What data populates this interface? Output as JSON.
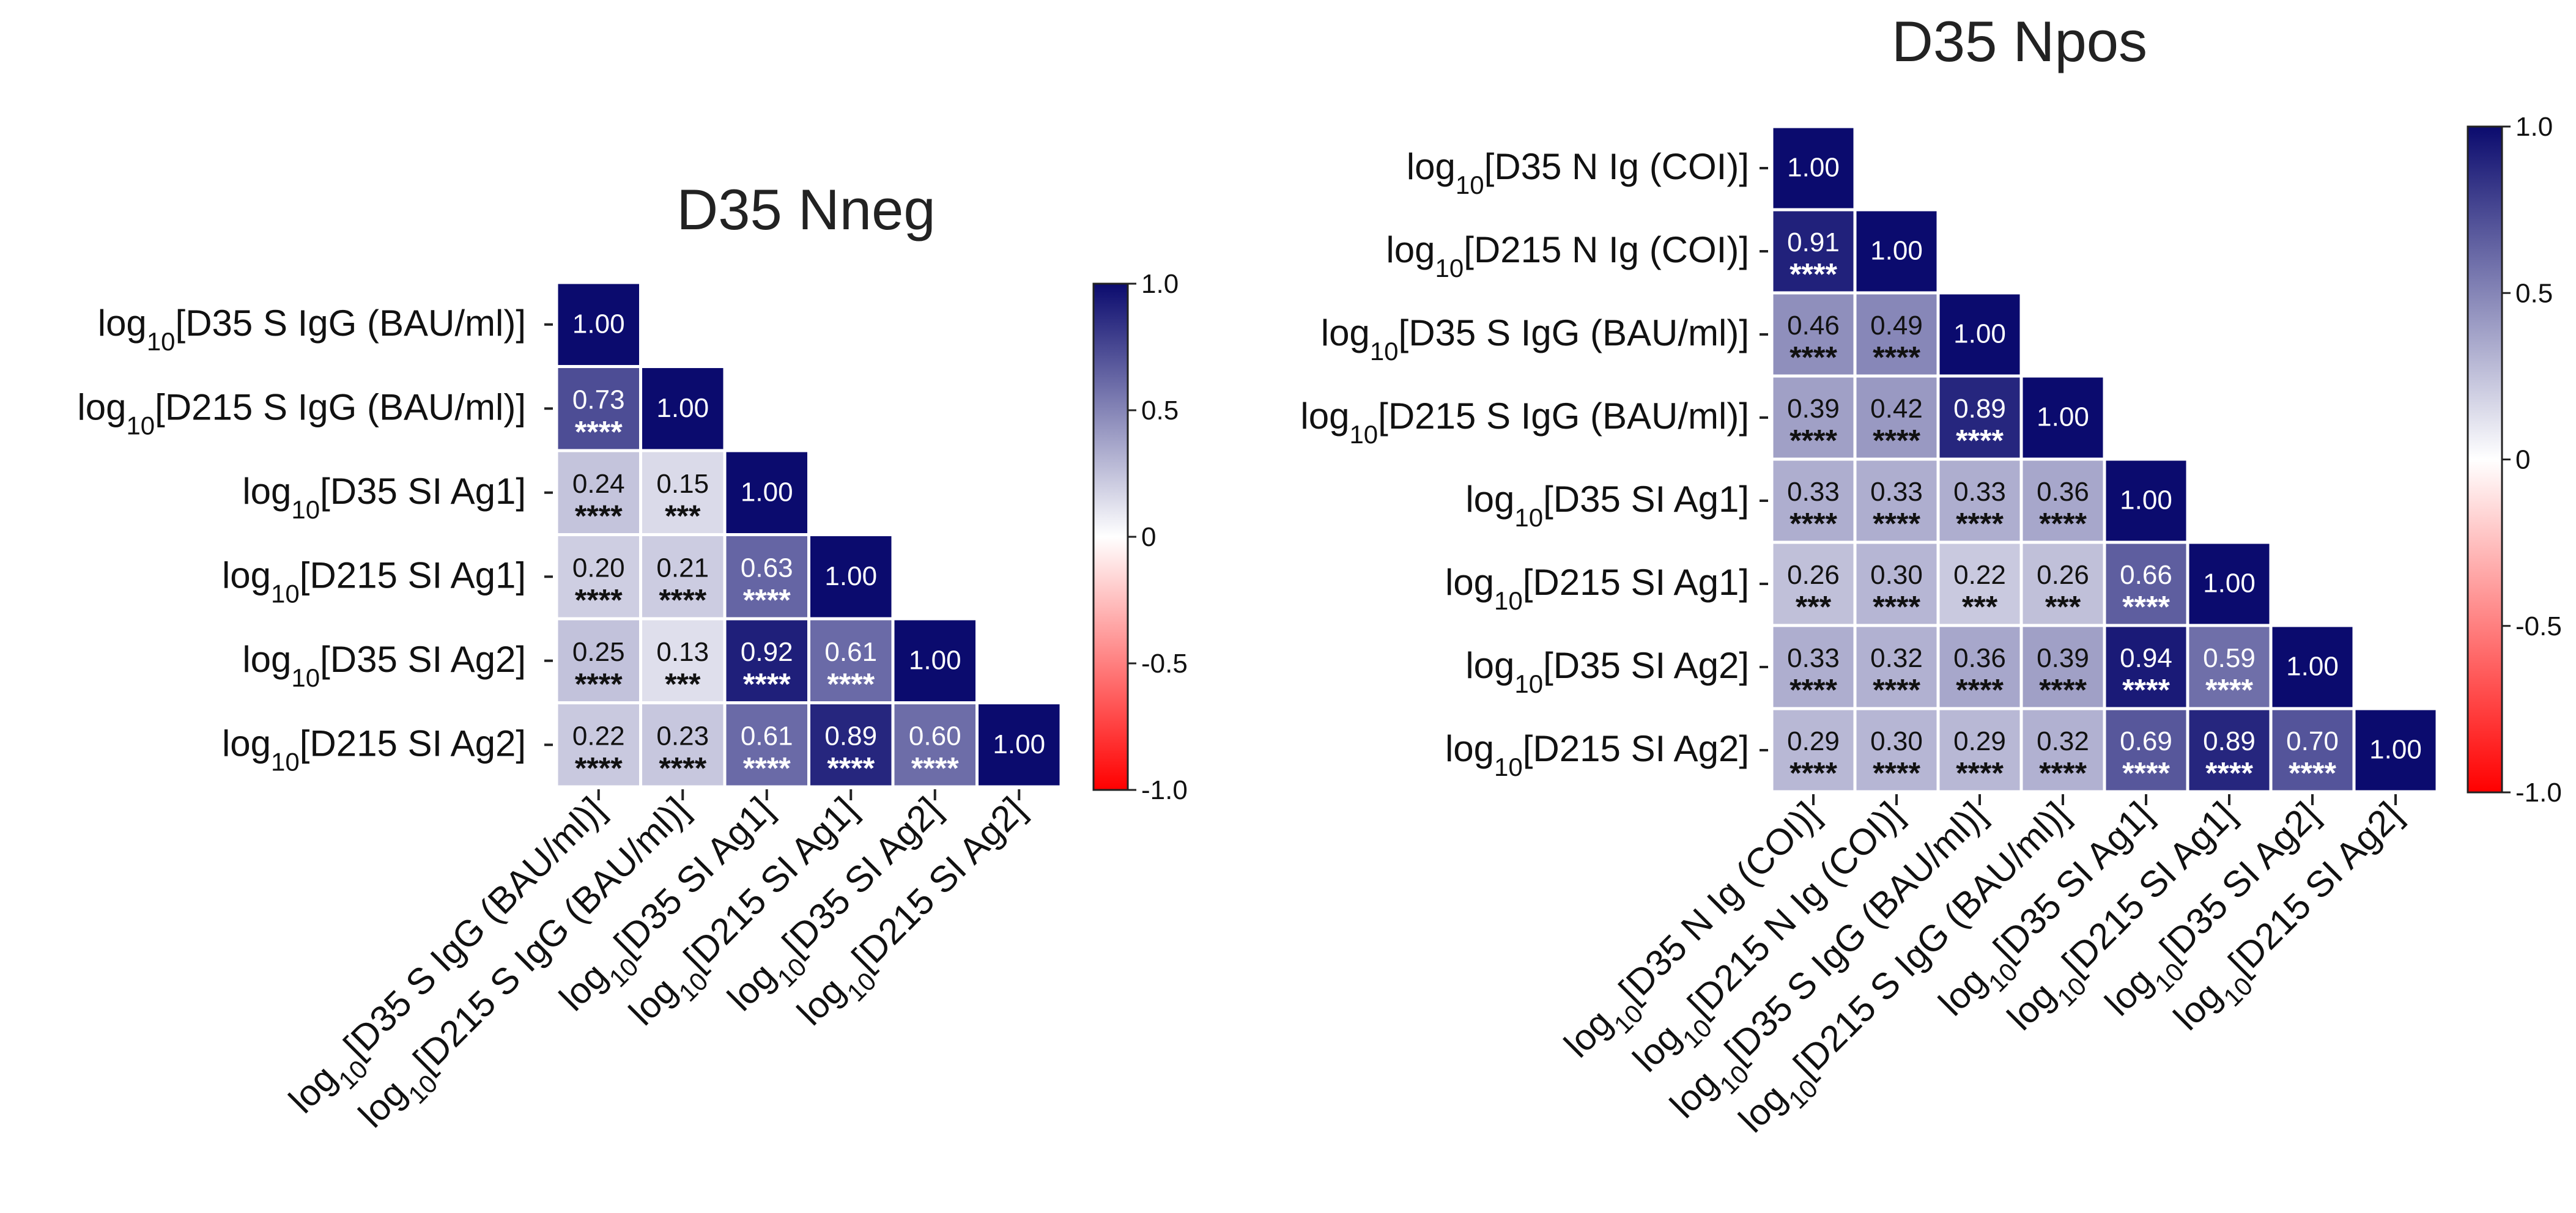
{
  "figure": {
    "log_prefix": "log",
    "log_subscript": "10"
  },
  "chart_data": [
    {
      "type": "heatmap",
      "subtype": "lower-triangular correlation matrix",
      "title": "D35 Nneg",
      "variables": [
        "[D35 S IgG (BAU/ml)]",
        "[D215 S IgG (BAU/ml)]",
        "[D35 SI Ag1]",
        "[D215 SI Ag1]",
        "[D35 SI Ag2]",
        "[D215 SI Ag2]"
      ],
      "values": [
        [
          1.0
        ],
        [
          0.73,
          1.0
        ],
        [
          0.24,
          0.15,
          1.0
        ],
        [
          0.2,
          0.21,
          0.63,
          1.0
        ],
        [
          0.25,
          0.13,
          0.92,
          0.61,
          1.0
        ],
        [
          0.22,
          0.23,
          0.61,
          0.89,
          0.6,
          1.0
        ]
      ],
      "significance": [
        [
          ""
        ],
        [
          "****",
          ""
        ],
        [
          "****",
          "***",
          ""
        ],
        [
          "****",
          "****",
          "****",
          ""
        ],
        [
          "****",
          "***",
          "****",
          "****",
          ""
        ],
        [
          "****",
          "****",
          "****",
          "****",
          "****",
          ""
        ]
      ],
      "colorbar": {
        "range": [
          -1.0,
          1.0
        ],
        "ticks": [
          "1.0",
          "0.5",
          "0",
          "-0.5",
          "-1.0"
        ],
        "colors": {
          "negative": "#ff0000",
          "zero": "#ffffff",
          "positive": "#0b0b6e"
        }
      }
    },
    {
      "type": "heatmap",
      "subtype": "lower-triangular correlation matrix",
      "title": "D35 Npos",
      "variables": [
        "[D35 N Ig (COI)]",
        "[D215 N Ig (COI)]",
        "[D35 S IgG (BAU/ml)]",
        "[D215 S IgG (BAU/ml)]",
        "[D35 SI Ag1]",
        "[D215 SI Ag1]",
        "[D35 SI Ag2]",
        "[D215 SI Ag2]"
      ],
      "values": [
        [
          1.0
        ],
        [
          0.91,
          1.0
        ],
        [
          0.46,
          0.49,
          1.0
        ],
        [
          0.39,
          0.42,
          0.89,
          1.0
        ],
        [
          0.33,
          0.33,
          0.33,
          0.36,
          1.0
        ],
        [
          0.26,
          0.3,
          0.22,
          0.26,
          0.66,
          1.0
        ],
        [
          0.33,
          0.32,
          0.36,
          0.39,
          0.94,
          0.59,
          1.0
        ],
        [
          0.29,
          0.3,
          0.29,
          0.32,
          0.69,
          0.89,
          0.7,
          1.0
        ]
      ],
      "significance": [
        [
          ""
        ],
        [
          "****",
          ""
        ],
        [
          "****",
          "****",
          ""
        ],
        [
          "****",
          "****",
          "****",
          ""
        ],
        [
          "****",
          "****",
          "****",
          "****",
          ""
        ],
        [
          "***",
          "****",
          "***",
          "***",
          "****",
          ""
        ],
        [
          "****",
          "****",
          "****",
          "****",
          "****",
          "****",
          ""
        ],
        [
          "****",
          "****",
          "****",
          "****",
          "****",
          "****",
          "****",
          ""
        ]
      ],
      "colorbar": {
        "range": [
          -1.0,
          1.0
        ],
        "ticks": [
          "1.0",
          "0.5",
          "0",
          "-0.5",
          "-1.0"
        ],
        "colors": {
          "negative": "#ff0000",
          "zero": "#ffffff",
          "positive": "#0b0b6e"
        }
      }
    }
  ]
}
